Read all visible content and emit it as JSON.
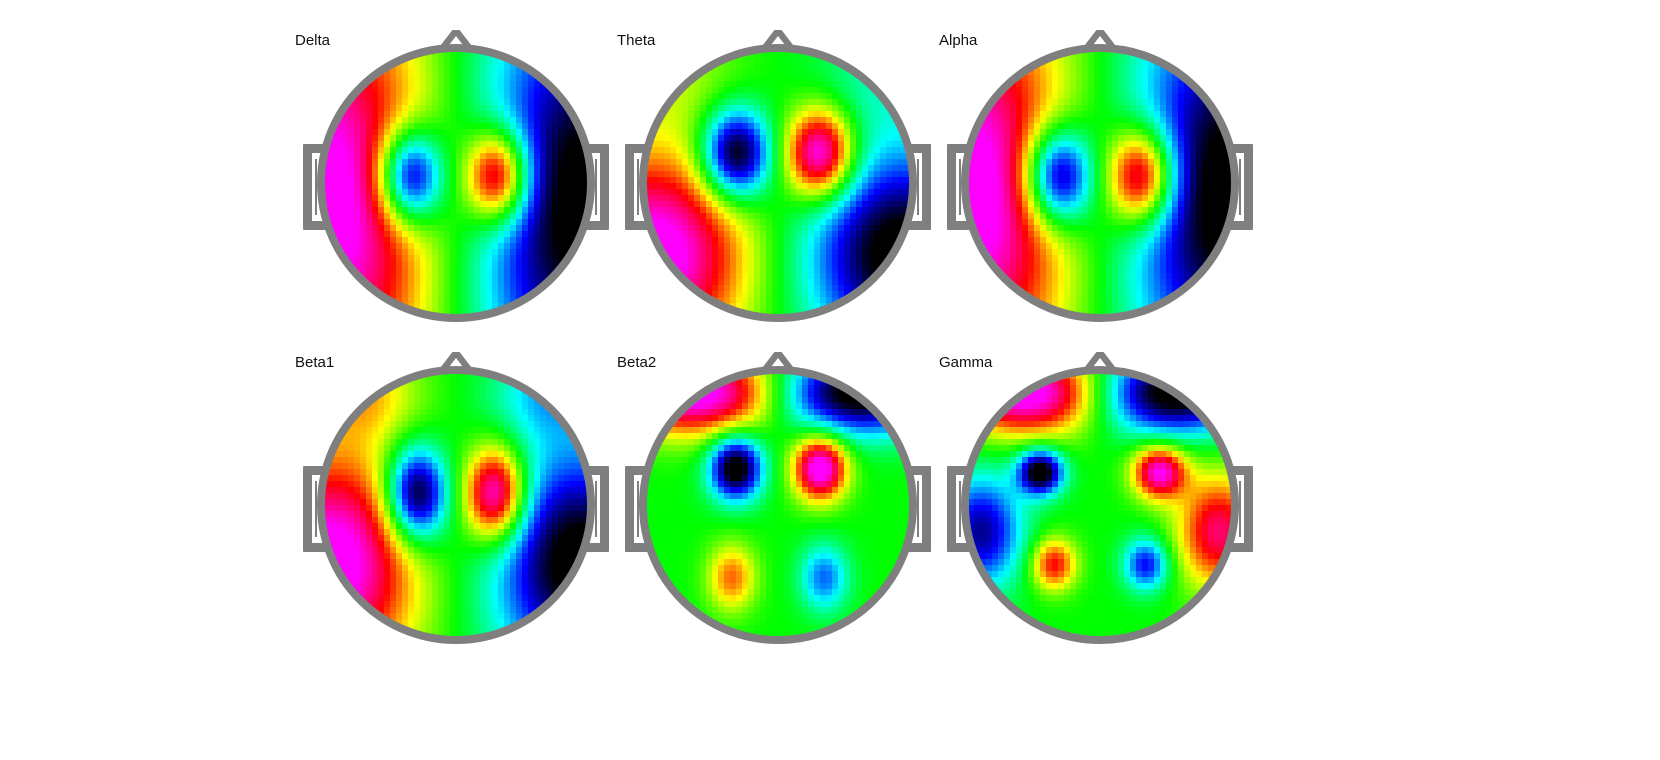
{
  "colormap": [
    "#000000",
    "#0000ff",
    "#00ffff",
    "#00ff00",
    "#ffff00",
    "#ff0000",
    "#ff00ff"
  ],
  "head_color": "#7f7f7f",
  "maps": [
    {
      "label": "Delta",
      "components": [
        {
          "u": -0.35,
          "v": -0.05,
          "su": 0.17,
          "sv": 0.25,
          "a": -1.8
        },
        {
          "u": 0.32,
          "v": -0.05,
          "su": 0.17,
          "sv": 0.25,
          "a": 1.8
        },
        {
          "u": -1.0,
          "v": 0.2,
          "su": 0.6,
          "sv": 1.2,
          "a": 1.8
        },
        {
          "u": 1.0,
          "v": 0.2,
          "su": 0.6,
          "sv": 1.2,
          "a": -1.8
        }
      ]
    },
    {
      "label": "Theta",
      "components": [
        {
          "u": -0.32,
          "v": -0.22,
          "su": 0.18,
          "sv": 0.24,
          "a": -1.8
        },
        {
          "u": 0.32,
          "v": -0.22,
          "su": 0.18,
          "sv": 0.24,
          "a": 1.8
        },
        {
          "u": -0.95,
          "v": 0.55,
          "su": 0.5,
          "sv": 0.55,
          "a": 1.8
        },
        {
          "u": 0.95,
          "v": 0.55,
          "su": 0.5,
          "sv": 0.55,
          "a": -1.8
        },
        {
          "u": -0.75,
          "v": -0.8,
          "su": 0.35,
          "sv": 0.3,
          "a": 0.3
        },
        {
          "u": 0.75,
          "v": -0.8,
          "su": 0.35,
          "sv": 0.3,
          "a": -0.3
        }
      ]
    },
    {
      "label": "Alpha",
      "components": [
        {
          "u": -0.32,
          "v": -0.05,
          "su": 0.18,
          "sv": 0.26,
          "a": -1.8
        },
        {
          "u": 0.32,
          "v": -0.05,
          "su": 0.18,
          "sv": 0.26,
          "a": 1.8
        },
        {
          "u": -1.0,
          "v": 0.1,
          "su": 0.55,
          "sv": 1.1,
          "a": 1.8
        },
        {
          "u": 1.0,
          "v": 0.1,
          "su": 0.55,
          "sv": 1.1,
          "a": -1.8
        }
      ]
    },
    {
      "label": "Beta1",
      "components": [
        {
          "u": -0.3,
          "v": -0.08,
          "su": 0.16,
          "sv": 0.25,
          "a": -1.8
        },
        {
          "u": 0.3,
          "v": -0.08,
          "su": 0.16,
          "sv": 0.25,
          "a": 1.8
        },
        {
          "u": -0.95,
          "v": 0.45,
          "su": 0.45,
          "sv": 0.6,
          "a": 1.8
        },
        {
          "u": 0.95,
          "v": 0.45,
          "su": 0.45,
          "sv": 0.6,
          "a": -1.8
        },
        {
          "u": -0.7,
          "v": -0.85,
          "su": 0.3,
          "sv": 0.25,
          "a": 0.6
        },
        {
          "u": 0.7,
          "v": -0.85,
          "su": 0.3,
          "sv": 0.25,
          "a": -0.6
        }
      ]
    },
    {
      "label": "Beta2",
      "components": [
        {
          "u": -0.32,
          "v": -0.28,
          "su": 0.14,
          "sv": 0.17,
          "a": -1.8
        },
        {
          "u": 0.32,
          "v": -0.28,
          "su": 0.14,
          "sv": 0.17,
          "a": 1.8
        },
        {
          "u": -0.6,
          "v": -0.85,
          "su": 0.45,
          "sv": 0.22,
          "a": 1.8
        },
        {
          "u": 0.6,
          "v": -0.85,
          "su": 0.45,
          "sv": 0.22,
          "a": -1.8
        },
        {
          "u": -0.35,
          "v": 0.55,
          "su": 0.13,
          "sv": 0.18,
          "a": 0.85
        },
        {
          "u": 0.35,
          "v": 0.55,
          "su": 0.13,
          "sv": 0.18,
          "a": -0.85
        }
      ]
    },
    {
      "label": "Gamma",
      "components": [
        {
          "u": -0.45,
          "v": -0.25,
          "su": 0.12,
          "sv": 0.12,
          "a": -1.8
        },
        {
          "u": 0.45,
          "v": -0.25,
          "su": 0.14,
          "sv": 0.14,
          "a": 1.6
        },
        {
          "u": -0.55,
          "v": -0.85,
          "su": 0.4,
          "sv": 0.22,
          "a": 1.8
        },
        {
          "u": 0.55,
          "v": -0.85,
          "su": 0.4,
          "sv": 0.22,
          "a": -1.8
        },
        {
          "u": -0.35,
          "v": 0.45,
          "su": 0.12,
          "sv": 0.14,
          "a": 1.1
        },
        {
          "u": 0.35,
          "v": 0.45,
          "su": 0.12,
          "sv": 0.14,
          "a": -1.1
        },
        {
          "u": -0.9,
          "v": 0.2,
          "su": 0.22,
          "sv": 0.3,
          "a": -1.3
        },
        {
          "u": 0.9,
          "v": 0.2,
          "su": 0.22,
          "sv": 0.3,
          "a": 1.3
        }
      ]
    }
  ]
}
